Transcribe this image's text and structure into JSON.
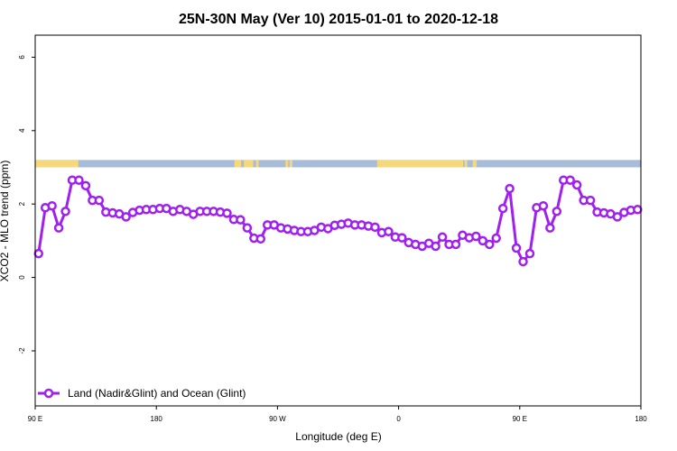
{
  "chart_data": {
    "type": "line",
    "title": "25N-30N May (Ver 10)   2015-01-01 to 2020-12-18",
    "xlabel": "Longitude (deg E)",
    "ylabel": "XCO2 - MLO trend (ppm)",
    "x_ticks": [
      {
        "value": 90,
        "label": "90 E"
      },
      {
        "value": 180,
        "label": "180"
      },
      {
        "value": 270,
        "label": "90 W"
      },
      {
        "value": 360,
        "label": "0"
      },
      {
        "value": 450,
        "label": "90 E"
      },
      {
        "value": 540,
        "label": "180"
      }
    ],
    "xlim": [
      90,
      540
    ],
    "y_ticks": [
      -2,
      0,
      2,
      4,
      6
    ],
    "ylim": [
      -3.5,
      6.6
    ],
    "grid": false,
    "legend": {
      "position": "bottom-left",
      "label": "Land (Nadir&Glint) and Ocean (Glint)"
    },
    "colors": {
      "series": "#a020f0",
      "ocean": "#a7bcd6",
      "land": "#f5d77c"
    },
    "land_ocean_band": {
      "y_range": [
        3.0,
        3.2
      ],
      "land_segments": [
        [
          90,
          122
        ],
        [
          238,
          243
        ],
        [
          245,
          252
        ],
        [
          254,
          256
        ],
        [
          276,
          278
        ],
        [
          279,
          281
        ],
        [
          345,
          344
        ],
        [
          345,
          408
        ],
        [
          409,
          411
        ],
        [
          415,
          418
        ]
      ]
    },
    "series": [
      {
        "name": "Land (Nadir&Glint) and Ocean (Glint)",
        "x": [
          92.5,
          97.5,
          102.5,
          107.5,
          112.5,
          117.5,
          122.5,
          127.5,
          132.5,
          137.5,
          142.5,
          147.5,
          152.5,
          157.5,
          162.5,
          167.5,
          172.5,
          177.5,
          182.5,
          187.5,
          192.5,
          197.5,
          202.5,
          207.5,
          212.5,
          217.5,
          222.5,
          227.5,
          232.5,
          237.5,
          242.5,
          247.5,
          252.5,
          257.5,
          262.5,
          267.5,
          272.5,
          277.5,
          282.5,
          287.5,
          292.5,
          297.5,
          302.5,
          307.5,
          312.5,
          317.5,
          322.5,
          327.5,
          332.5,
          337.5,
          342.5,
          347.5,
          352.5,
          357.5,
          362.5,
          367.5,
          372.5,
          377.5,
          382.5,
          387.5,
          392.5,
          397.5,
          402.5,
          407.5,
          412.5,
          417.5,
          422.5,
          427.5,
          432.5,
          437.5,
          442.5,
          447.5,
          452.5,
          457.5,
          462.5,
          467.5,
          472.5,
          477.5,
          482.5,
          487.5,
          492.5,
          497.5,
          502.5,
          507.5,
          512.5,
          517.5,
          522.5,
          527.5,
          532.5,
          537.5
        ],
        "y": [
          0.65,
          1.9,
          1.95,
          1.35,
          1.8,
          2.65,
          2.65,
          2.5,
          2.1,
          2.1,
          1.78,
          1.76,
          1.73,
          1.65,
          1.77,
          1.83,
          1.85,
          1.85,
          1.88,
          1.88,
          1.8,
          1.85,
          1.8,
          1.72,
          1.8,
          1.8,
          1.8,
          1.78,
          1.75,
          1.58,
          1.57,
          1.35,
          1.07,
          1.05,
          1.43,
          1.43,
          1.35,
          1.32,
          1.28,
          1.25,
          1.25,
          1.28,
          1.37,
          1.33,
          1.42,
          1.45,
          1.48,
          1.43,
          1.43,
          1.4,
          1.37,
          1.22,
          1.25,
          1.1,
          1.08,
          0.95,
          0.9,
          0.85,
          0.93,
          0.85,
          1.1,
          0.9,
          0.9,
          1.15,
          1.08,
          1.12,
          1.0,
          0.9,
          1.07,
          1.88,
          2.42,
          0.8,
          0.43,
          0.65,
          1.9,
          1.95,
          1.35,
          1.8,
          2.65,
          2.65,
          2.52,
          2.1,
          2.1,
          1.78,
          1.76,
          1.73,
          1.65,
          1.77,
          1.83,
          1.85
        ]
      }
    ]
  }
}
